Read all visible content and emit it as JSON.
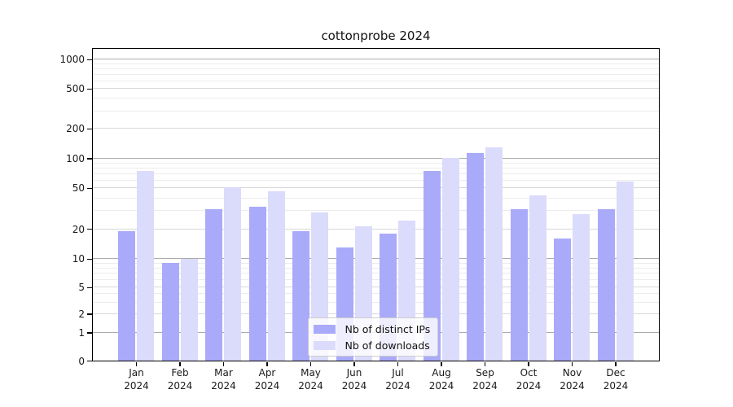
{
  "title": "cottonprobe 2024",
  "colors": {
    "distinct_ips": "#aaaafa",
    "downloads": "#dbdbfb",
    "grid_major": "#ababab",
    "grid_mid": "#d8d8d8",
    "grid_minor": "#ececec",
    "axis": "#000000",
    "text": "#191919",
    "legend_border": "#cccccc"
  },
  "chart_data": {
    "type": "bar",
    "title": "cottonprobe 2024",
    "categories": [
      "Jan 2024",
      "Feb 2024",
      "Mar 2024",
      "Apr 2024",
      "May 2024",
      "Jun 2024",
      "Jul 2024",
      "Aug 2024",
      "Sep 2024",
      "Oct 2024",
      "Nov 2024",
      "Dec 2024"
    ],
    "series": [
      {
        "name": "Nb of distinct IPs",
        "color_key": "distinct_ips",
        "values": [
          19,
          9,
          31,
          33,
          19,
          13,
          18,
          75,
          112,
          31,
          16,
          31
        ]
      },
      {
        "name": "Nb of downloads",
        "color_key": "downloads",
        "values": [
          75,
          10,
          51,
          46,
          29,
          21,
          24,
          101,
          130,
          42,
          28,
          58
        ]
      }
    ],
    "xlabel": "",
    "ylabel": "",
    "yscale": "symlog",
    "y_ticks": [
      0,
      1,
      2,
      5,
      10,
      20,
      50,
      100,
      200,
      500,
      1000
    ],
    "ylim": [
      0,
      1280
    ],
    "grid": true,
    "legend_position": "lower center"
  }
}
